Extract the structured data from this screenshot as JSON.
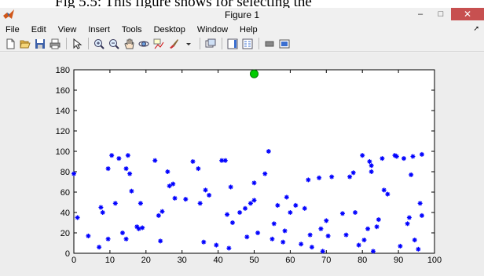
{
  "caption": "Fig 5.5: This figure shows for selecting the",
  "window": {
    "title": "Figure 1",
    "controls": [
      "–",
      "□",
      "✕"
    ]
  },
  "menu": [
    "File",
    "Edit",
    "View",
    "Insert",
    "Tools",
    "Desktop",
    "Window",
    "Help"
  ],
  "toolbar": [
    "new-figure-icon",
    "open-file-icon",
    "save-icon",
    "print-icon",
    "select-arrow-icon",
    "zoom-in-icon",
    "zoom-out-icon",
    "pan-icon",
    "rotate-3d-icon",
    "data-cursor-icon",
    "brush-icon",
    "link-plot-icon",
    "colorbar-icon",
    "legend-icon",
    "hide-tools-icon",
    "show-tools-icon"
  ],
  "colors": {
    "marker": "#0000ff",
    "highlight": "#00cc00"
  },
  "chart_data": {
    "type": "scatter",
    "title": "",
    "xlabel": "",
    "ylabel": "",
    "xlim": [
      0,
      100
    ],
    "ylim": [
      0,
      180
    ],
    "xticks": [
      0,
      10,
      20,
      30,
      40,
      50,
      60,
      70,
      80,
      90,
      100
    ],
    "yticks": [
      0,
      20,
      40,
      60,
      80,
      100,
      120,
      140,
      160,
      180
    ],
    "grid": false,
    "series": [
      {
        "marker": "asterisk",
        "color": "#0000ff",
        "points": [
          [
            0,
            78
          ],
          [
            1,
            35
          ],
          [
            4,
            17
          ],
          [
            7,
            6
          ],
          [
            7.5,
            45
          ],
          [
            8,
            40
          ],
          [
            9.5,
            14
          ],
          [
            9.5,
            83
          ],
          [
            10.5,
            96
          ],
          [
            11.5,
            49
          ],
          [
            12.5,
            93
          ],
          [
            13.5,
            20
          ],
          [
            14.5,
            14
          ],
          [
            14.5,
            83
          ],
          [
            15,
            96
          ],
          [
            15.5,
            78
          ],
          [
            16,
            61
          ],
          [
            17.5,
            26
          ],
          [
            18,
            24
          ],
          [
            18.5,
            49
          ],
          [
            19,
            25
          ],
          [
            22.5,
            91
          ],
          [
            23.5,
            37
          ],
          [
            24,
            12
          ],
          [
            24.5,
            41
          ],
          [
            26,
            80
          ],
          [
            26.5,
            66
          ],
          [
            27.5,
            68
          ],
          [
            28,
            54
          ],
          [
            31,
            53
          ],
          [
            33,
            90
          ],
          [
            34.5,
            83
          ],
          [
            35,
            49
          ],
          [
            36.5,
            62
          ],
          [
            36,
            11
          ],
          [
            37.5,
            57
          ],
          [
            39.5,
            8
          ],
          [
            41,
            91
          ],
          [
            42,
            91
          ],
          [
            42.5,
            38
          ],
          [
            43,
            5
          ],
          [
            43.5,
            65
          ],
          [
            44,
            30
          ],
          [
            46,
            40
          ],
          [
            47.5,
            44
          ],
          [
            48,
            16
          ],
          [
            49,
            49
          ],
          [
            50,
            69
          ],
          [
            50,
            52
          ],
          [
            51,
            20
          ],
          [
            53,
            78
          ],
          [
            54,
            100
          ],
          [
            55,
            14
          ],
          [
            55.5,
            29
          ],
          [
            56.5,
            47
          ],
          [
            58,
            11
          ],
          [
            58.5,
            22
          ],
          [
            59,
            55
          ],
          [
            60,
            40
          ],
          [
            61.5,
            47
          ],
          [
            63,
            9
          ],
          [
            64,
            44
          ],
          [
            65,
            72
          ],
          [
            65.5,
            18
          ],
          [
            66,
            6
          ],
          [
            68,
            74
          ],
          [
            68.5,
            24
          ],
          [
            69,
            2
          ],
          [
            70,
            32
          ],
          [
            70.5,
            17
          ],
          [
            71.5,
            75
          ],
          [
            74.5,
            39
          ],
          [
            75.5,
            18
          ],
          [
            76.5,
            75
          ],
          [
            77.5,
            79
          ],
          [
            78,
            40
          ],
          [
            79,
            8
          ],
          [
            80,
            96
          ],
          [
            80.5,
            13
          ],
          [
            81.5,
            24
          ],
          [
            82,
            90
          ],
          [
            82.5,
            86
          ],
          [
            82.5,
            80
          ],
          [
            83,
            2
          ],
          [
            84,
            26
          ],
          [
            84.5,
            33
          ],
          [
            85.5,
            93
          ],
          [
            86,
            62
          ],
          [
            87,
            58
          ],
          [
            89,
            96
          ],
          [
            89.5,
            95
          ],
          [
            90.5,
            7
          ],
          [
            91.5,
            93
          ],
          [
            92.5,
            29
          ],
          [
            93,
            35
          ],
          [
            93.5,
            77
          ],
          [
            94,
            95
          ],
          [
            94.5,
            13
          ],
          [
            95.5,
            4
          ],
          [
            96,
            49
          ],
          [
            96.5,
            97
          ],
          [
            96.5,
            37
          ]
        ]
      },
      {
        "marker": "circle",
        "color": "#00cc00",
        "points": [
          [
            50,
            176
          ]
        ]
      }
    ]
  }
}
